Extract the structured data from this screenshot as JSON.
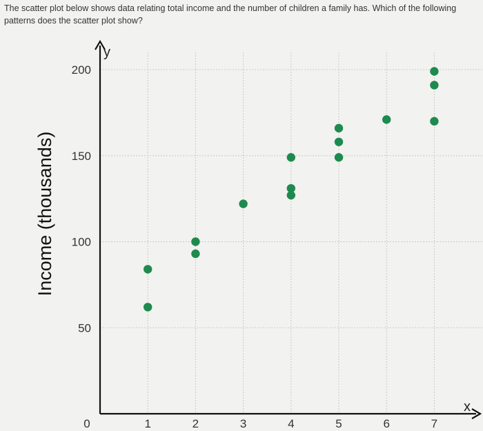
{
  "question": "The scatter plot below shows data relating total income and the number of children a family has. Which of the following patterns does the scatter plot show?",
  "chart_data": {
    "type": "scatter",
    "title": "",
    "xlabel": "x",
    "ylabel": "Income (thousands)",
    "y_axis_letter": "y",
    "xlim": [
      0,
      7.3
    ],
    "ylim": [
      0,
      210
    ],
    "x_ticks": [
      1,
      2,
      3,
      4,
      5,
      6,
      7
    ],
    "y_ticks": [
      50,
      100,
      150,
      200
    ],
    "origin_label": "0",
    "grid": true,
    "point_color": "#1e8a4e",
    "points": [
      {
        "x": 1,
        "y": 62
      },
      {
        "x": 1,
        "y": 84
      },
      {
        "x": 2,
        "y": 93
      },
      {
        "x": 2,
        "y": 100
      },
      {
        "x": 3,
        "y": 122
      },
      {
        "x": 4,
        "y": 127
      },
      {
        "x": 4,
        "y": 131
      },
      {
        "x": 4,
        "y": 149
      },
      {
        "x": 5,
        "y": 149
      },
      {
        "x": 5,
        "y": 158
      },
      {
        "x": 5,
        "y": 166
      },
      {
        "x": 6,
        "y": 171
      },
      {
        "x": 7,
        "y": 170
      },
      {
        "x": 7,
        "y": 191
      },
      {
        "x": 7,
        "y": 199
      }
    ]
  }
}
